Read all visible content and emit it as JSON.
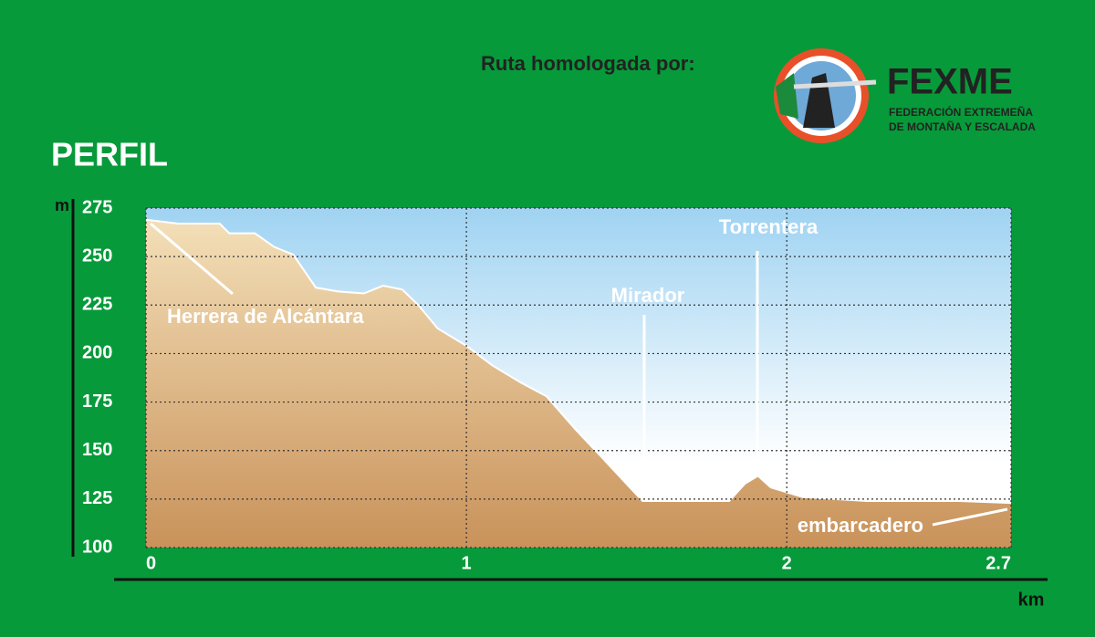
{
  "header": {
    "title": "PERFIL",
    "homologation": "Ruta homologada por:",
    "logo_name": "FEXME",
    "logo_line1": "FEDERACIÓN EXTREMEÑA",
    "logo_line2": "DE MONTAÑA Y ESCALADA"
  },
  "chart_data": {
    "type": "area",
    "x_label": "km",
    "y_label": "m",
    "x": [
      0,
      0.1,
      0.23,
      0.26,
      0.34,
      0.4,
      0.46,
      0.53,
      0.6,
      0.68,
      0.74,
      0.8,
      0.85,
      0.91,
      1.0,
      1.08,
      1.17,
      1.25,
      1.34,
      1.42,
      1.51,
      1.55,
      1.68,
      1.82,
      1.87,
      1.91,
      1.95,
      2.05,
      2.25,
      2.54,
      2.7
    ],
    "y": [
      269,
      267,
      267,
      262,
      262,
      255,
      251,
      234,
      232,
      231,
      235,
      233,
      225,
      213,
      204,
      194,
      185,
      178,
      161,
      147,
      131,
      124,
      124,
      124,
      133,
      137,
      131,
      126,
      124,
      124,
      123
    ],
    "xlim": [
      0,
      2.7
    ],
    "xticks": [
      0,
      1,
      2,
      2.7
    ],
    "ylim": [
      100,
      275
    ],
    "yticks": [
      100,
      125,
      150,
      175,
      200,
      225,
      250,
      275
    ],
    "grid": true,
    "annotations": [
      {
        "text": "Herrera de Alcántara",
        "x": 0,
        "y": 269
      },
      {
        "text": "Mirador",
        "x": 1.55,
        "y": 124
      },
      {
        "text": "Torrentera",
        "x": 1.91,
        "y": 137
      },
      {
        "text": "embarcadero",
        "x": 2.7,
        "y": 123
      }
    ]
  }
}
